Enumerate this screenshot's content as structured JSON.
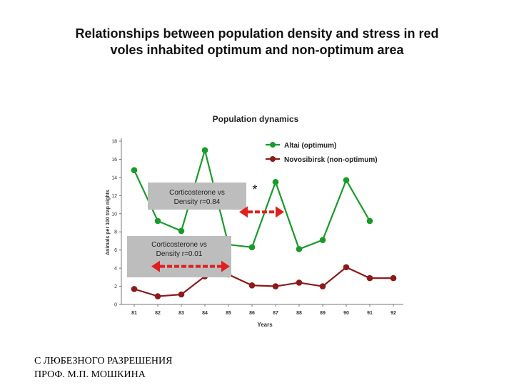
{
  "slide": {
    "title_line1": "Relationships between population density and stress in red",
    "title_line2": "voles  inhabited optimum and non-optimum area",
    "credit_line1": "С ЛЮБЕЗНОГО РАЗРЕШЕНИЯ",
    "credit_line2": "ПРОФ. М.П. МОШКИНА"
  },
  "chart_data": {
    "type": "line",
    "title": "Population dynamics",
    "xlabel": "Years",
    "ylabel": "Animals per 100 trap nights",
    "categories": [
      "81",
      "82",
      "83",
      "84",
      "85",
      "86",
      "87",
      "88",
      "89",
      "90",
      "91",
      "92"
    ],
    "y_ticks": [
      "0",
      "2",
      "4",
      "6",
      "8",
      "10",
      "12",
      "14",
      "16",
      "18"
    ],
    "ylim": [
      0,
      18
    ],
    "grid": false,
    "legend_position": "top-right",
    "series": [
      {
        "name": "Altai (optimum)",
        "color": "#1a9a2a",
        "values": [
          14.8,
          9.2,
          8.1,
          17.0,
          6.6,
          6.3,
          13.5,
          6.1,
          7.1,
          13.7,
          9.2,
          null
        ]
      },
      {
        "name": "Novosibirsk (non-optimum)",
        "color": "#8b1a1a",
        "values": [
          1.7,
          0.9,
          1.1,
          3.1,
          3.3,
          2.1,
          2.0,
          2.4,
          2.0,
          4.1,
          2.9,
          2.9
        ]
      }
    ],
    "annotations": [
      {
        "text_line1": "Corticosterone vs",
        "text_line2": "Density r=0.84",
        "arrow_from": "84",
        "arrow_to": "87",
        "arrow_value": 10.2,
        "arrow_color": "#e0201e"
      },
      {
        "text_line1": "Corticosterone vs",
        "text_line2": "Density r=0.01",
        "arrow_from": "81",
        "arrow_to": "85",
        "arrow_value": 4.2,
        "arrow_color": "#e0201e"
      }
    ],
    "asterisk": {
      "text": "*",
      "category": "86",
      "value": 12.8
    }
  }
}
